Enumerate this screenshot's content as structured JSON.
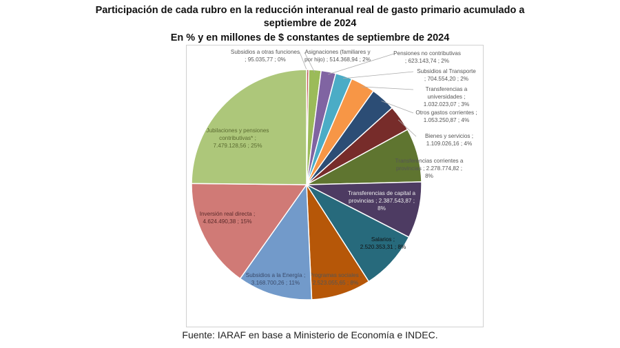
{
  "chart_data": {
    "type": "pie",
    "title": "Participación de cada rubro en la reducción interanual real de gasto primario acumulado a septiembre de 2024",
    "title_line1": "Participación de cada rubro en la reducción interanual real de gasto primario acumulado a",
    "title_line2": "septiembre de 2024",
    "subtitle": "En % y en millones de $ constantes de septiembre de 2024",
    "start": "12 o'clock, clockwise",
    "slices": [
      {
        "label": "Subsidios a otras funciones",
        "value": 95035.77,
        "value_text": "95.035,77",
        "pct": "0%",
        "color": "#c0504d"
      },
      {
        "label": "Asignaciones (familiares y por hijo)",
        "value": 514368.94,
        "value_text": "514.368,94",
        "pct": "2%",
        "color": "#9bbb59"
      },
      {
        "label": "Pensiones no contributivas",
        "value": 623143.74,
        "value_text": "623.143,74",
        "pct": "2%",
        "color": "#8064a2"
      },
      {
        "label": "Subsidios al Transporte",
        "value": 704554.2,
        "value_text": "704.554,20",
        "pct": "2%",
        "color": "#4bacc6"
      },
      {
        "label": "Transferencias a universidades",
        "value": 1032023.07,
        "value_text": "1.032.023,07",
        "pct": "3%",
        "color": "#f79646"
      },
      {
        "label": "Otros gastos corrientes",
        "value": 1053250.87,
        "value_text": "1.053.250,87",
        "pct": "4%",
        "color": "#2c4d75"
      },
      {
        "label": "Bienes y servicios",
        "value": 1109026.16,
        "value_text": "1.109.026,16",
        "pct": "4%",
        "color": "#772c2a"
      },
      {
        "label": "Transferencias corrientes a provincias",
        "value": 2278774.82,
        "value_text": "2.278.774,82",
        "pct": "8%",
        "color": "#5f7530"
      },
      {
        "label": "Transferencias de capital a provincias",
        "value": 2387543.87,
        "value_text": "2.387.543,87",
        "pct": "8%",
        "color": "#4d3b62"
      },
      {
        "label": "Salarios",
        "value": 2520353.31,
        "value_text": "2.520.353,31",
        "pct": "8%",
        "color": "#276a7c"
      },
      {
        "label": "Programas sociales",
        "value": 2523055.65,
        "value_text": "2.523.055,65",
        "pct": "8%",
        "color": "#b65708"
      },
      {
        "label": "Subsidios a la Energía",
        "value": 3168700.26,
        "value_text": "3.168.700,26",
        "pct": "11%",
        "color": "#729aca"
      },
      {
        "label": "Inversión real directa",
        "value": 4624490.38,
        "value_text": "4.624.490,38",
        "pct": "15%",
        "color": "#d07a76"
      },
      {
        "label": "Jubilaciones y pensiones contributivas*",
        "value": 7479128.56,
        "value_text": "7.479.128,56",
        "pct": "25%",
        "color": "#adc77a"
      }
    ],
    "labels_display": [
      [
        "Subsidios a otras funciones",
        ";  95.035,77 ; 0%"
      ],
      [
        "Asignaciones (familiares y",
        "por hijo) ;  514.368,94 ; 2%"
      ],
      [
        "Pensiones no contributivas",
        ";  623.143,74 ; 2%"
      ],
      [
        "Subsidios al Transporte",
        ";  704.554,20 ; 2%"
      ],
      [
        "Transferencias a",
        "universidades ;",
        "1.032.023,07 ; 3%"
      ],
      [
        "Otros gastos corrientes ;",
        "1.053.250,87 ; 4%"
      ],
      [
        "Bienes y servicios ;",
        "1.109.026,16 ; 4%"
      ],
      [
        "Transferencias corrientes a",
        "provincias ;  2.278.774,82 ;",
        "8%"
      ],
      [
        "Transferencias de capital a",
        "provincias ;  2.387.543,87 ;",
        "8%"
      ],
      [
        "Salarios ;",
        "2.520.353,31 ; 8%"
      ],
      [
        "Programas sociales ;",
        "2.523.055,65 ; 8%"
      ],
      [
        "Subsidios a la Energía ;",
        "3.168.700,26 ; 11%"
      ],
      [
        "Inversión real directa ;",
        "4.624.490,38 ; 15%"
      ],
      [
        "Jubilaciones y pensiones",
        "contributivas* ;",
        "7.479.128,56 ; 25%"
      ]
    ]
  },
  "source": "Fuente: IARAF en base a Ministerio de Economía e INDEC."
}
